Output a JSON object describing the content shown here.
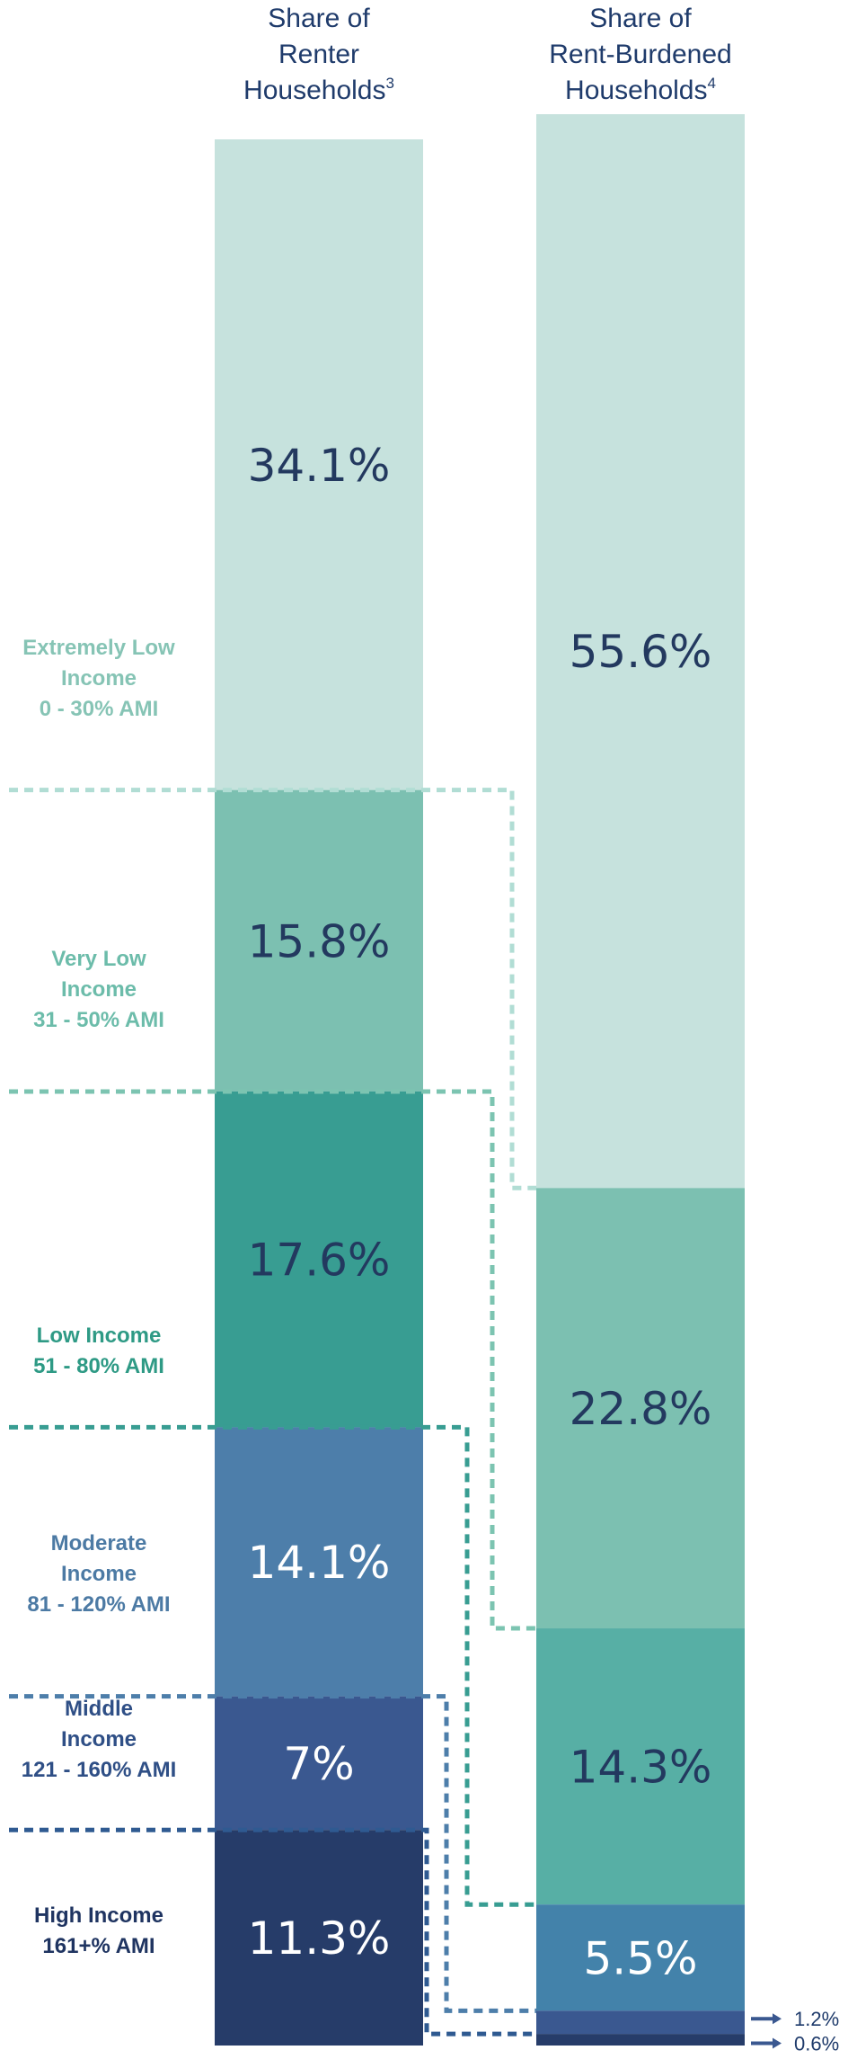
{
  "chart_data": {
    "type": "bar",
    "stacked": true,
    "percent_total": 100,
    "columns": [
      {
        "heading": [
          "Share of",
          "Renter",
          "Households"
        ],
        "footnote": "3",
        "segments": [
          {
            "category": "Extremely Low Income",
            "value": 34.1,
            "label": "34.1%"
          },
          {
            "category": "Very Low Income",
            "value": 15.8,
            "label": "15.8%"
          },
          {
            "category": "Low Income",
            "value": 17.6,
            "label": "17.6%"
          },
          {
            "category": "Moderate Income",
            "value": 14.1,
            "label": "14.1%"
          },
          {
            "category": "Middle Income",
            "value": 7.0,
            "label": "7%"
          },
          {
            "category": "High Income",
            "value": 11.3,
            "label": "11.3%"
          }
        ]
      },
      {
        "heading": [
          "Share of",
          "Rent-Burdened",
          "Households"
        ],
        "footnote": "4",
        "segments": [
          {
            "category": "Extremely Low Income",
            "value": 55.6,
            "label": "55.6%"
          },
          {
            "category": "Very Low Income",
            "value": 22.8,
            "label": "22.8%"
          },
          {
            "category": "Low Income",
            "value": 14.3,
            "label": "14.3%"
          },
          {
            "category": "Moderate Income",
            "value": 5.5,
            "label": "5.5%"
          },
          {
            "category": "Middle Income",
            "value": 1.2,
            "label": "1.2%"
          },
          {
            "category": "High Income",
            "value": 0.6,
            "label": "0.6%"
          }
        ]
      }
    ],
    "categories": [
      {
        "name": "Extremely Low Income",
        "lines": [
          "Extremely Low",
          "Income",
          "0 - 30% AMI"
        ],
        "color": "#c6e2dd",
        "label_color": "#86c4b5",
        "value_text_color": "#23395f"
      },
      {
        "name": "Very Low Income",
        "lines": [
          "Very Low",
          "Income",
          "31 - 50% AMI"
        ],
        "color": "#7cc0b1",
        "label_color": "#6cbcaa",
        "value_text_color": "#23395f"
      },
      {
        "name": "Low Income",
        "lines": [
          "Low Income",
          "51 - 80% AMI"
        ],
        "color": "#389d92",
        "label_color": "#2e9a85",
        "value_text_color": "#23395f"
      },
      {
        "name": "Moderate Income",
        "lines": [
          "Moderate",
          "Income",
          "81 - 120% AMI"
        ],
        "color": "#4d7eaa",
        "label_color": "#4c7aa4",
        "value_text_color": "#ffffff"
      },
      {
        "name": "Middle Income",
        "lines": [
          "Middle",
          "Income",
          "121 - 160% AMI"
        ],
        "color": "#3a5890",
        "label_color": "#2f4f86",
        "value_text_color": "#ffffff"
      },
      {
        "name": "High Income",
        "lines": [
          "High Income",
          "161+% AMI"
        ],
        "color": "#263c69",
        "label_color": "#1f3461",
        "value_text_color": "#ffffff"
      }
    ],
    "right_column_palette": [
      "#c6e2dd",
      "#7cc0b1",
      "#57afa5",
      "#4382aa",
      "#3a5890",
      "#263c69"
    ]
  }
}
